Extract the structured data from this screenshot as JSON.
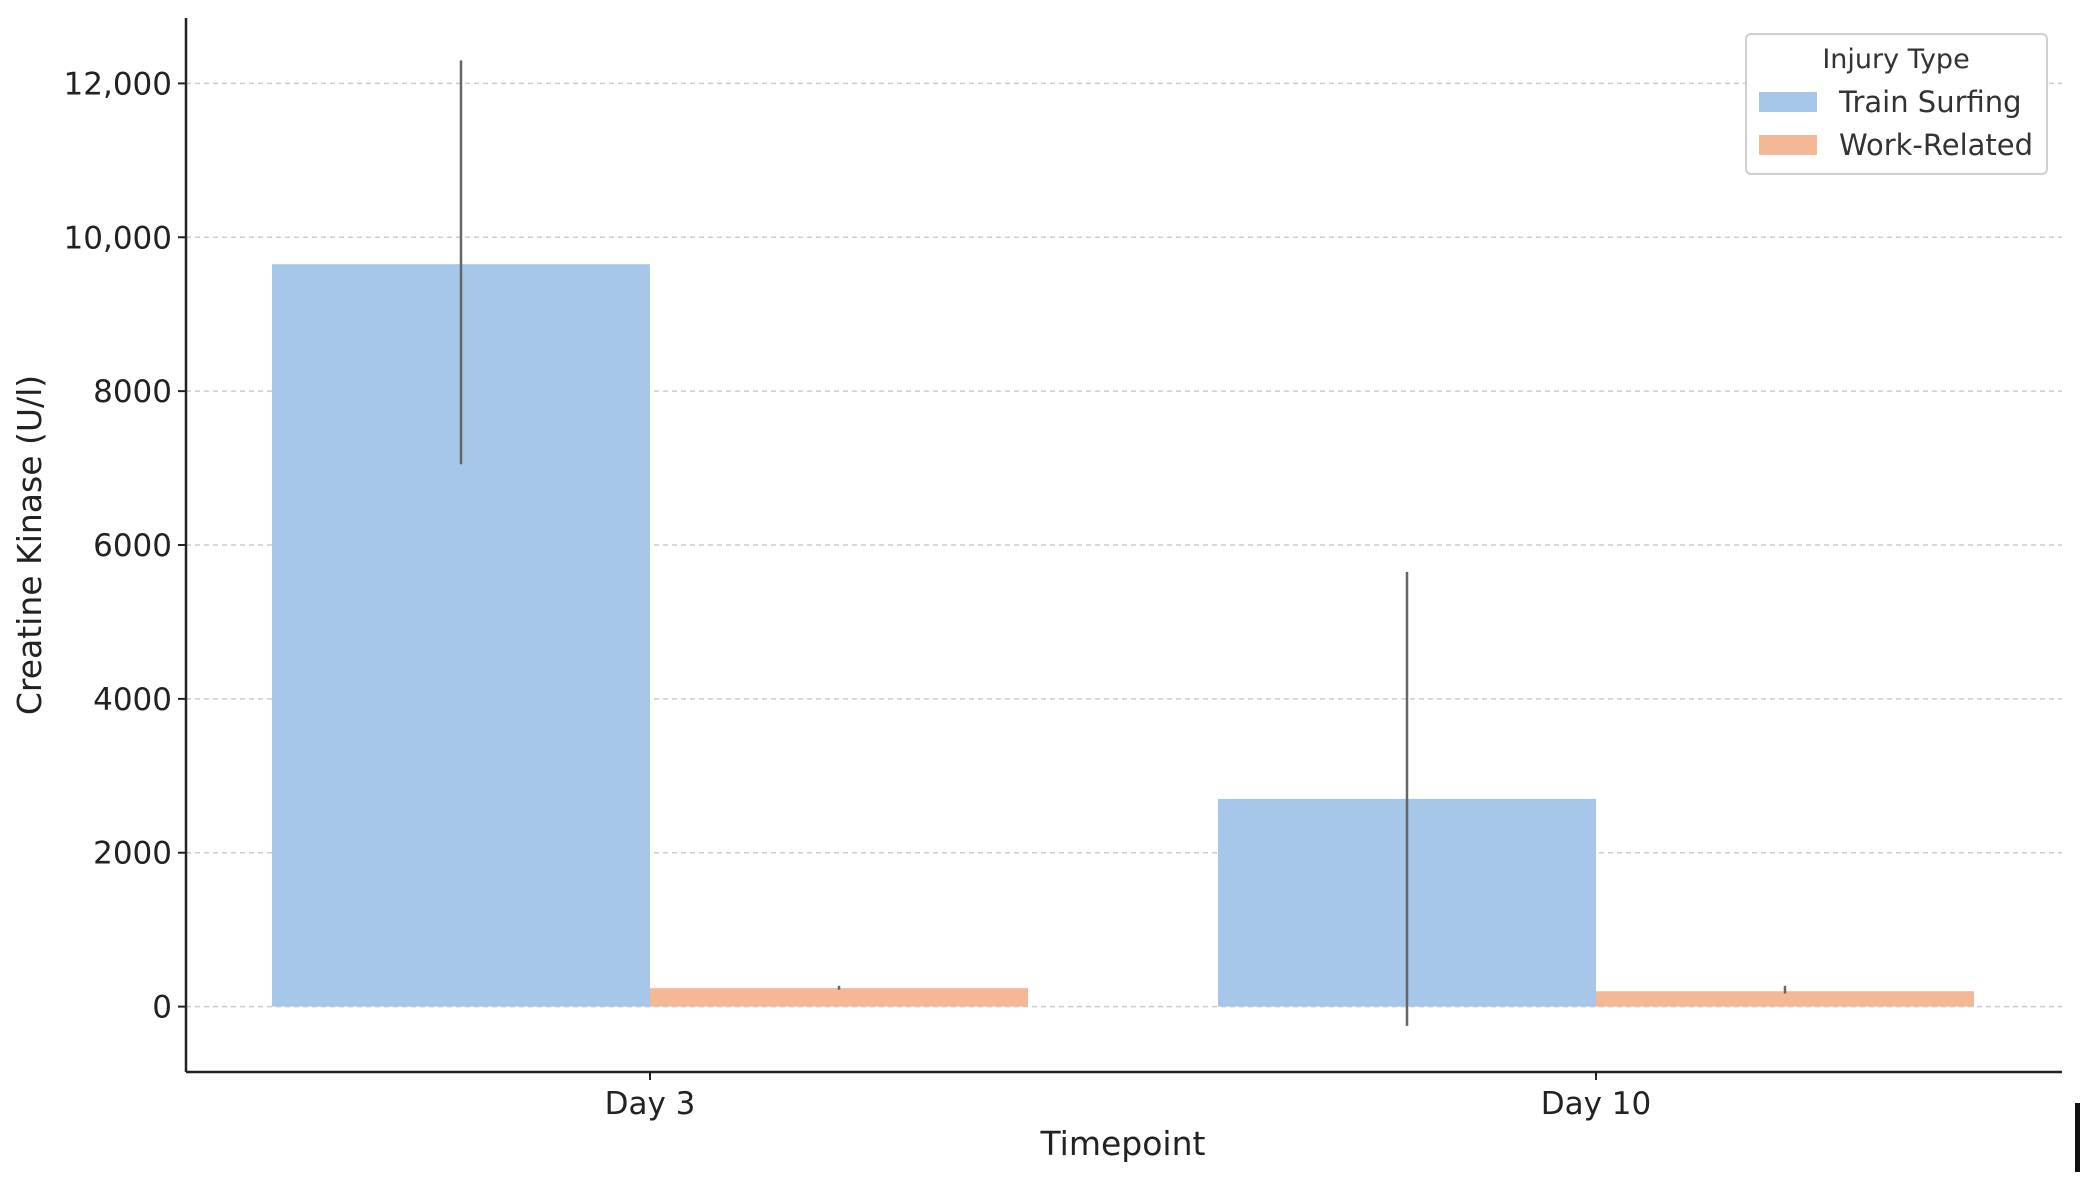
{
  "chart_data": {
    "type": "bar",
    "categories": [
      "Day 3",
      "Day 10"
    ],
    "series": [
      {
        "name": "Train Surfing",
        "values": [
          9650,
          2700
        ],
        "error_low": [
          7050,
          -250
        ],
        "error_high": [
          12300,
          5650
        ],
        "color": "#a7c7ea"
      },
      {
        "name": "Work-Related",
        "values": [
          240,
          200
        ],
        "error_low": [
          220,
          170
        ],
        "error_high": [
          270,
          270
        ],
        "color": "#f4b896"
      }
    ],
    "xlabel": "Timepoint",
    "ylabel": "Creatine Kinase (U/l)",
    "ylim": [
      -850,
      12850
    ],
    "yticks": [
      0,
      2000,
      4000,
      6000,
      8000,
      10000,
      12000
    ],
    "ytick_labels": [
      "0",
      "2000",
      "4000",
      "6000",
      "8000",
      "10,000",
      "12,000"
    ],
    "legend_title": "Injury Type",
    "legend_position": "top-right",
    "grid": "horizontal-dashed"
  },
  "colors": {
    "grid": "#cccccc",
    "axis": "#222222",
    "error_bar": "#666666"
  }
}
